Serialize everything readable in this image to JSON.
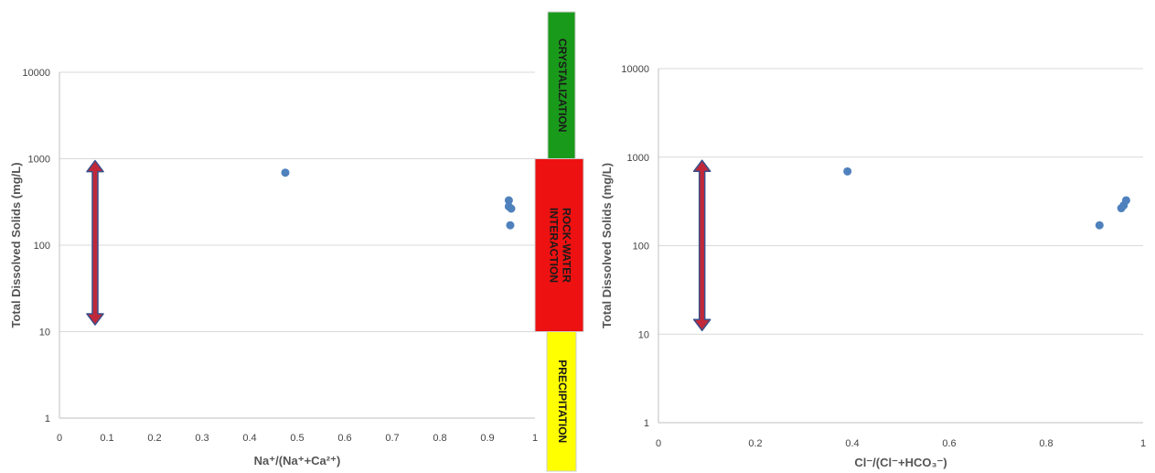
{
  "chart_data": [
    {
      "type": "scatter",
      "xlabel": "Na⁺/(Na⁺+Ca²⁺)",
      "ylabel": "Total Dissolved Solids (mg/L)",
      "xlim": [
        0,
        1
      ],
      "ylim": [
        1,
        10000
      ],
      "yscale": "log",
      "x_ticks": [
        0,
        0.1,
        0.2,
        0.3,
        0.4,
        0.5,
        0.6,
        0.7,
        0.8,
        0.9,
        1
      ],
      "x_tick_labels": [
        "0",
        "0.1",
        "0.2",
        "0.3",
        "0.4",
        "0.5",
        "0.6",
        "0.7",
        "0.8",
        "0.9",
        "1"
      ],
      "y_ticks": [
        1,
        10,
        100,
        1000,
        10000
      ],
      "y_tick_labels": [
        "1",
        "10",
        "100",
        "1000",
        "10000"
      ],
      "grid": "horizontal",
      "marker_color": "#4f81bd",
      "points": [
        {
          "x": 0.475,
          "y": 690
        },
        {
          "x": 0.945,
          "y": 330
        },
        {
          "x": 0.945,
          "y": 280
        },
        {
          "x": 0.95,
          "y": 265
        },
        {
          "x": 0.948,
          "y": 170
        }
      ],
      "arrow": {
        "x": 0.075,
        "y_from": 12,
        "y_to": 950,
        "color": "#c0283a",
        "outline": "#3a4f8a"
      }
    },
    {
      "type": "scatter",
      "xlabel": "Cl⁻/(Cl⁻+HCO₃⁻)",
      "ylabel": "Total Dissolved Solids (mg/L)",
      "xlim": [
        0,
        1
      ],
      "ylim": [
        1,
        10000
      ],
      "yscale": "log",
      "x_ticks": [
        0,
        0.2,
        0.4,
        0.6,
        0.8,
        1
      ],
      "x_tick_labels": [
        "0",
        "0.2",
        "0.4",
        "0.6",
        "0.8",
        "1"
      ],
      "y_ticks": [
        1,
        10,
        100,
        1000,
        10000
      ],
      "y_tick_labels": [
        "1",
        "10",
        "100",
        "1000",
        "10000"
      ],
      "grid": "horizontal",
      "marker_color": "#4f81bd",
      "points": [
        {
          "x": 0.39,
          "y": 690
        },
        {
          "x": 0.91,
          "y": 170
        },
        {
          "x": 0.955,
          "y": 265
        },
        {
          "x": 0.96,
          "y": 285
        },
        {
          "x": 0.965,
          "y": 325
        }
      ],
      "arrow": {
        "x": 0.09,
        "y_from": 11,
        "y_to": 920,
        "color": "#c0283a",
        "outline": "#3a4f8a"
      }
    }
  ],
  "zones": [
    {
      "label": "CRYSTALIZATION",
      "color": "#1a9a1a",
      "y_top": 10000,
      "y_bottom": 1000
    },
    {
      "label": "ROCK-WATER INTERACTION",
      "lines": [
        "ROCK-WATER",
        "INTERACTION"
      ],
      "color": "#ee1111",
      "y_top": 1000,
      "y_bottom": 10
    },
    {
      "label": "PRECIPITATION",
      "color": "#ffff00",
      "y_top": 10,
      "y_bottom": 0.5
    }
  ]
}
